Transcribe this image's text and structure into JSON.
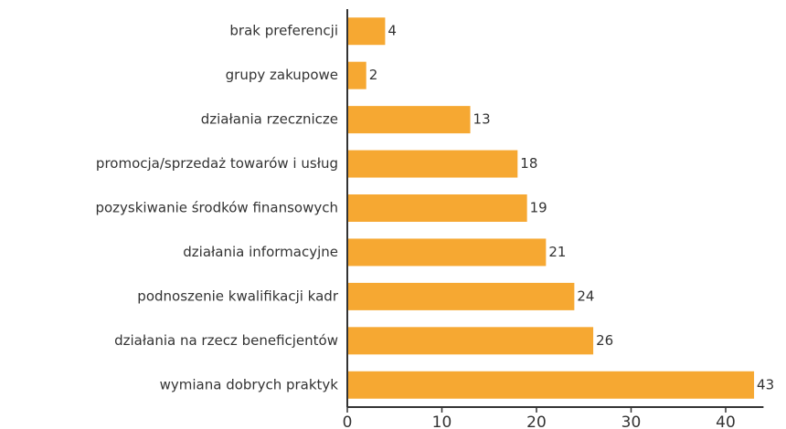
{
  "chart_data": {
    "type": "barh",
    "categories": [
      "brak preferencji",
      "grupy zakupowe",
      "działania rzecznicze",
      "promocja/sprzedaż towarów i usług",
      "pozyskiwanie środków finansowych",
      "działania informacyjne",
      "podnoszenie kwalifikacji kadr",
      "działania na rzecz beneficjentów",
      "wymiana dobrych praktyk"
    ],
    "values": [
      4,
      2,
      13,
      18,
      19,
      21,
      24,
      26,
      43
    ],
    "color": "#f6a832",
    "xlim": [
      0,
      44
    ],
    "xticks": [
      0,
      10,
      20,
      30,
      40
    ],
    "grid": false
  }
}
